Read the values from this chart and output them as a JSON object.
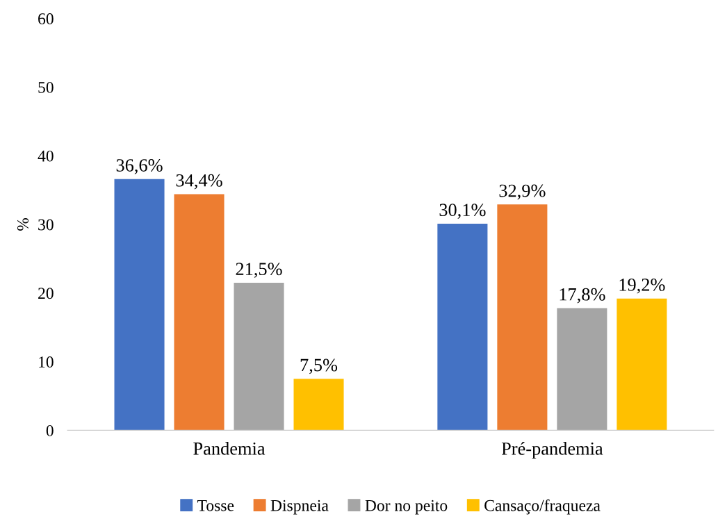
{
  "chart_data": {
    "type": "bar",
    "ylabel": "%",
    "categories": [
      "Pandemia",
      "Pré-pandemia"
    ],
    "series": [
      {
        "name": "Tosse",
        "color": "#4472c4",
        "values": [
          36.6,
          30.1
        ],
        "value_labels": [
          "36,6%",
          "30,1%"
        ]
      },
      {
        "name": "Dispneia",
        "color": "#ed7d31",
        "values": [
          34.4,
          32.9
        ],
        "value_labels": [
          "34,4%",
          "32,9%"
        ]
      },
      {
        "name": "Dor no peito",
        "color": "#a5a5a5",
        "values": [
          21.5,
          17.8
        ],
        "value_labels": [
          "21,5%",
          "17,8%"
        ]
      },
      {
        "name": "Cansaço/fraqueza",
        "color": "#ffc000",
        "values": [
          7.5,
          19.2
        ],
        "value_labels": [
          "7,5%",
          "19,2%"
        ]
      }
    ],
    "ylim": [
      0,
      60
    ],
    "yticks": [
      0,
      10,
      20,
      30,
      40,
      50,
      60
    ],
    "grid": false,
    "legend": "bottom"
  }
}
